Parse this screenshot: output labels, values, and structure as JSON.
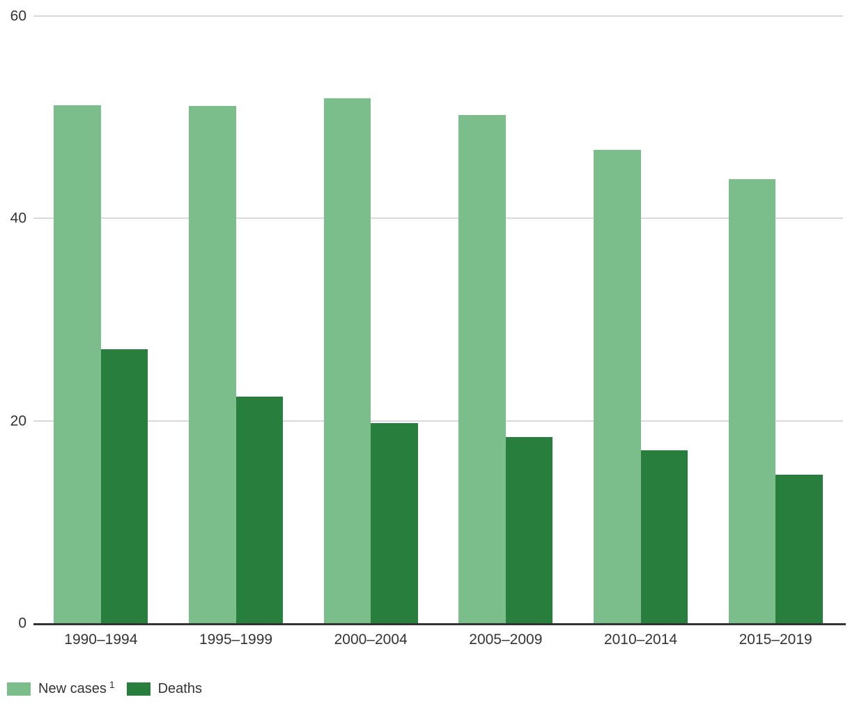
{
  "chart_data": {
    "type": "bar",
    "categories": [
      "1990–1994",
      "1995–1999",
      "2000–2004",
      "2005–2009",
      "2010–2014",
      "2015–2019"
    ],
    "series": [
      {
        "name": "New cases",
        "superscript": "1",
        "color": "#7bbe8c",
        "values": [
          51.2,
          51.1,
          51.9,
          50.2,
          46.8,
          43.9
        ]
      },
      {
        "name": "Deaths",
        "superscript": "",
        "color": "#287e3c",
        "values": [
          27.1,
          22.4,
          19.8,
          18.4,
          17.1,
          14.7
        ]
      }
    ],
    "title": "",
    "xlabel": "",
    "ylabel": "",
    "ylim": [
      0,
      60
    ],
    "yticks": [
      0,
      20,
      40,
      60
    ],
    "grid": true,
    "legend_position": "bottom-left"
  },
  "legend": {
    "items": [
      {
        "label": "New cases",
        "superscript": "1",
        "color": "#7bbe8c"
      },
      {
        "label": "Deaths",
        "superscript": "",
        "color": "#287e3c"
      }
    ]
  },
  "colors": {
    "series_new_cases": "#7bbe8c",
    "series_deaths": "#287e3c",
    "gridline": "#d9d9d9",
    "axis_line": "#333333",
    "text": "#333333",
    "background": "#ffffff"
  }
}
